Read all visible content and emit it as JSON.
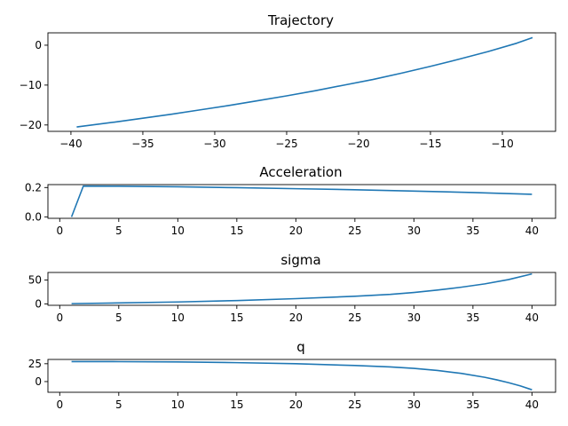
{
  "chart_data": [
    {
      "type": "line",
      "title": "Trajectory",
      "xlabel": "",
      "ylabel": "",
      "xlim": [
        -41.6,
        -6.3
      ],
      "ylim": [
        -21.6,
        3.1
      ],
      "xticks": [
        -40,
        -35,
        -30,
        -25,
        -20,
        -15,
        -10
      ],
      "yticks": [
        -20,
        -10,
        0
      ],
      "grid": false,
      "series": [
        {
          "x": [
            -39.6,
            -37,
            -35,
            -33,
            -31,
            -29,
            -27,
            -25,
            -23,
            -21,
            -19,
            -17,
            -15,
            -13,
            -11,
            -9,
            -7.9
          ],
          "y": [
            -20.5,
            -19.3,
            -18.3,
            -17.3,
            -16.2,
            -15.1,
            -13.9,
            -12.7,
            -11.4,
            -10.0,
            -8.6,
            -7.0,
            -5.3,
            -3.5,
            -1.6,
            0.5,
            1.9
          ]
        }
      ]
    },
    {
      "type": "line",
      "title": "Acceleration",
      "xlabel": "",
      "ylabel": "",
      "xlim": [
        -1,
        42
      ],
      "ylim": [
        -0.01,
        0.22
      ],
      "xticks": [
        0,
        5,
        10,
        15,
        20,
        25,
        30,
        35,
        40
      ],
      "yticks": [
        0.0,
        0.2
      ],
      "grid": false,
      "series": [
        {
          "x": [
            1,
            2,
            5,
            10,
            15,
            20,
            25,
            30,
            35,
            40
          ],
          "y": [
            0.0,
            0.21,
            0.209,
            0.205,
            0.199,
            0.192,
            0.185,
            0.176,
            0.166,
            0.154
          ]
        }
      ]
    },
    {
      "type": "line",
      "title": "sigma",
      "xlabel": "",
      "ylabel": "",
      "xlim": [
        -1,
        42
      ],
      "ylim": [
        -3,
        66
      ],
      "xticks": [
        0,
        5,
        10,
        15,
        20,
        25,
        30,
        35,
        40
      ],
      "yticks": [
        0,
        50
      ],
      "grid": false,
      "series": [
        {
          "x": [
            1,
            5,
            10,
            15,
            20,
            25,
            28,
            30,
            32,
            34,
            36,
            38,
            40
          ],
          "y": [
            0.5,
            2.0,
            4.0,
            7.0,
            11.0,
            16.0,
            20.0,
            24.0,
            29.0,
            35.0,
            42.0,
            51.0,
            63.0
          ]
        }
      ]
    },
    {
      "type": "line",
      "title": "q",
      "xlabel": "",
      "ylabel": "",
      "xlim": [
        -1,
        42
      ],
      "ylim": [
        -15,
        31
      ],
      "xticks": [
        0,
        5,
        10,
        15,
        20,
        25,
        30,
        35,
        40
      ],
      "yticks": [
        0,
        25
      ],
      "grid": false,
      "series": [
        {
          "x": [
            1,
            5,
            10,
            15,
            20,
            25,
            28,
            30,
            32,
            34,
            36,
            37,
            38,
            39,
            40
          ],
          "y": [
            28.0,
            27.9,
            27.5,
            26.5,
            25.0,
            22.5,
            20.5,
            18.5,
            15.5,
            11.5,
            6.0,
            2.5,
            -1.5,
            -6.0,
            -11.5
          ]
        }
      ]
    }
  ],
  "colors": {
    "series": "#1f77b4",
    "axes": "#000000",
    "background": "#ffffff"
  }
}
